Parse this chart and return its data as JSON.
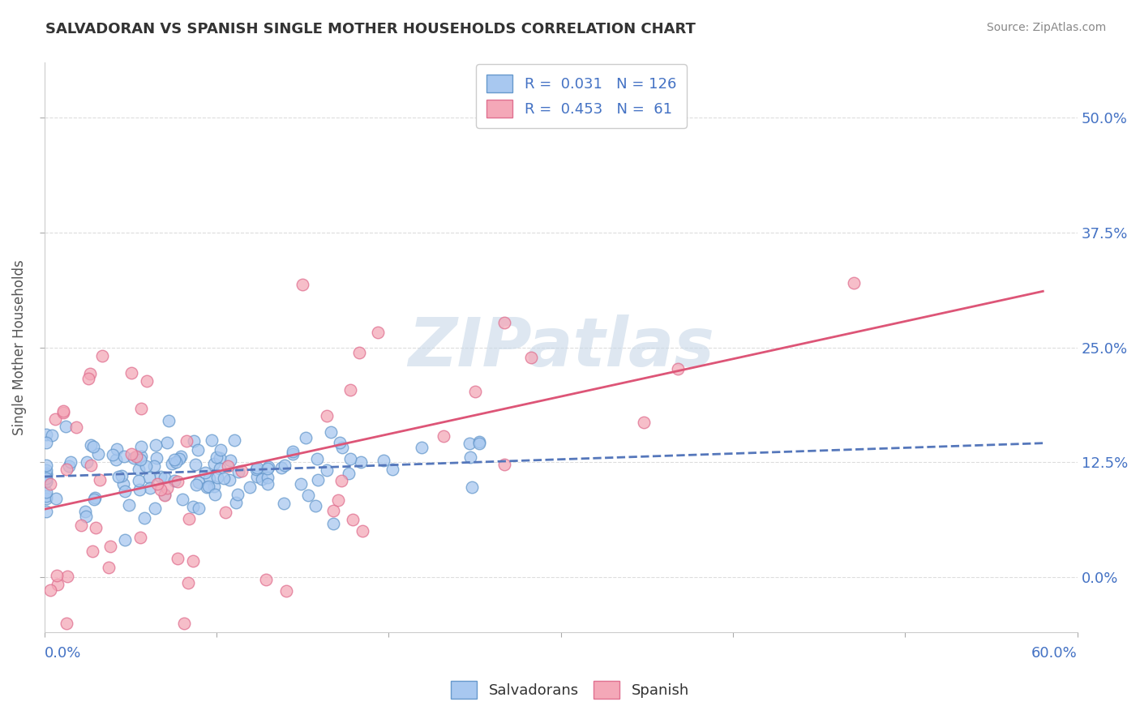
{
  "title": "SALVADORAN VS SPANISH SINGLE MOTHER HOUSEHOLDS CORRELATION CHART",
  "source": "Source: ZipAtlas.com",
  "ylabel": "Single Mother Households",
  "ytick_values": [
    0.0,
    12.5,
    25.0,
    37.5,
    50.0
  ],
  "xlim": [
    0.0,
    60.0
  ],
  "ylim": [
    -6.0,
    56.0
  ],
  "legend_r1": "0.031",
  "legend_n1": "126",
  "legend_r2": "0.453",
  "legend_n2": "61",
  "color_blue": "#A8C8F0",
  "color_pink": "#F4A8B8",
  "color_blue_dark": "#6699CC",
  "color_pink_dark": "#E07090",
  "color_blue_line": "#5577BB",
  "color_pink_line": "#DD5577",
  "watermark_color": "#C8D8E8",
  "blue_seed": 42,
  "pink_seed": 99
}
